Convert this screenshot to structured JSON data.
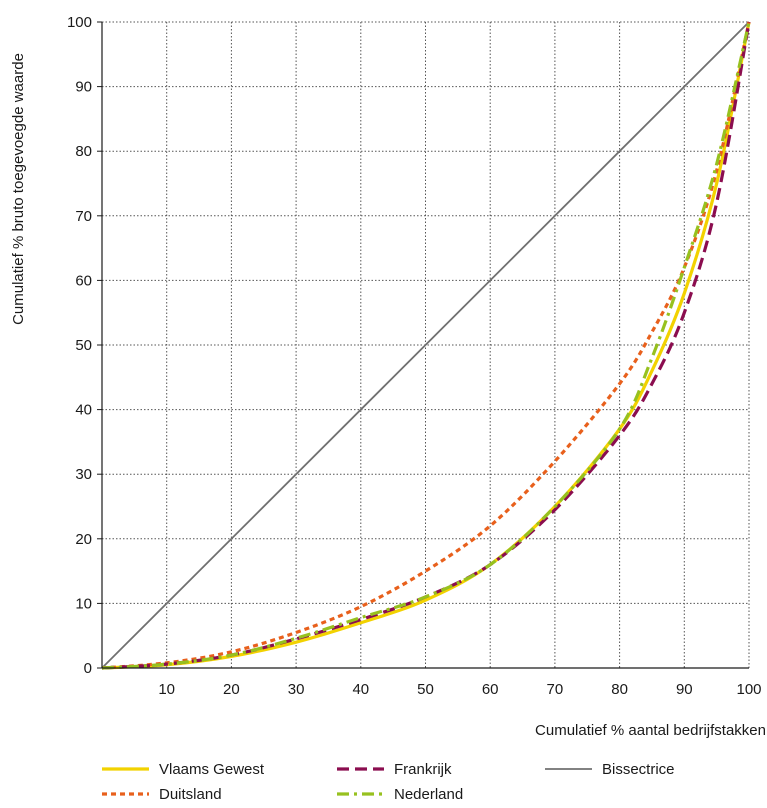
{
  "chart_data": {
    "type": "line",
    "xlabel": "Cumulatief % aantal bedrijfstakken",
    "ylabel": "Cumulatief % bruto toegevoegde waarde",
    "xlim": [
      0,
      100
    ],
    "ylim": [
      0,
      100
    ],
    "x_ticks": [
      "10",
      "20",
      "30",
      "40",
      "50",
      "60",
      "70",
      "80",
      "90",
      "100"
    ],
    "y_ticks": [
      "0",
      "10",
      "20",
      "30",
      "40",
      "50",
      "60",
      "70",
      "80",
      "90",
      "100"
    ],
    "grid": true,
    "legend_position": "bottom",
    "series": [
      {
        "name": "Vlaams Gewest",
        "color": "#f2d200",
        "dash": "solid",
        "x": [
          0,
          10,
          20,
          30,
          40,
          50,
          60,
          70,
          80,
          85,
          90,
          95,
          100
        ],
        "y": [
          0,
          0.5,
          1.8,
          4,
          7,
          10.5,
          16,
          25,
          37,
          46,
          58,
          75,
          100
        ]
      },
      {
        "name": "Frankrijk",
        "color": "#8b0d4f",
        "dash": "dash",
        "x": [
          0,
          10,
          20,
          30,
          40,
          50,
          60,
          70,
          80,
          85,
          90,
          95,
          100
        ],
        "y": [
          0,
          0.6,
          2,
          4.5,
          7.5,
          11,
          16,
          24.5,
          36,
          44,
          55,
          72,
          100
        ]
      },
      {
        "name": "Bissectrice",
        "color": "#707070",
        "dash": "solid",
        "x": [
          0,
          100
        ],
        "y": [
          0,
          100
        ]
      },
      {
        "name": "Duitsland",
        "color": "#e8601c",
        "dash": "dot",
        "x": [
          0,
          10,
          20,
          30,
          40,
          50,
          60,
          70,
          80,
          85,
          90,
          95,
          100
        ],
        "y": [
          0,
          0.8,
          2.5,
          5.5,
          9.5,
          15,
          22,
          32,
          44,
          52,
          62,
          77,
          100
        ]
      },
      {
        "name": "Nederland",
        "color": "#97c11f",
        "dash": "dashdot",
        "x": [
          0,
          10,
          20,
          30,
          40,
          50,
          60,
          70,
          80,
          85,
          90,
          95,
          100
        ],
        "y": [
          0,
          0.6,
          2,
          4.6,
          7.8,
          11,
          16,
          25,
          37,
          48,
          62,
          78,
          100
        ]
      }
    ]
  }
}
